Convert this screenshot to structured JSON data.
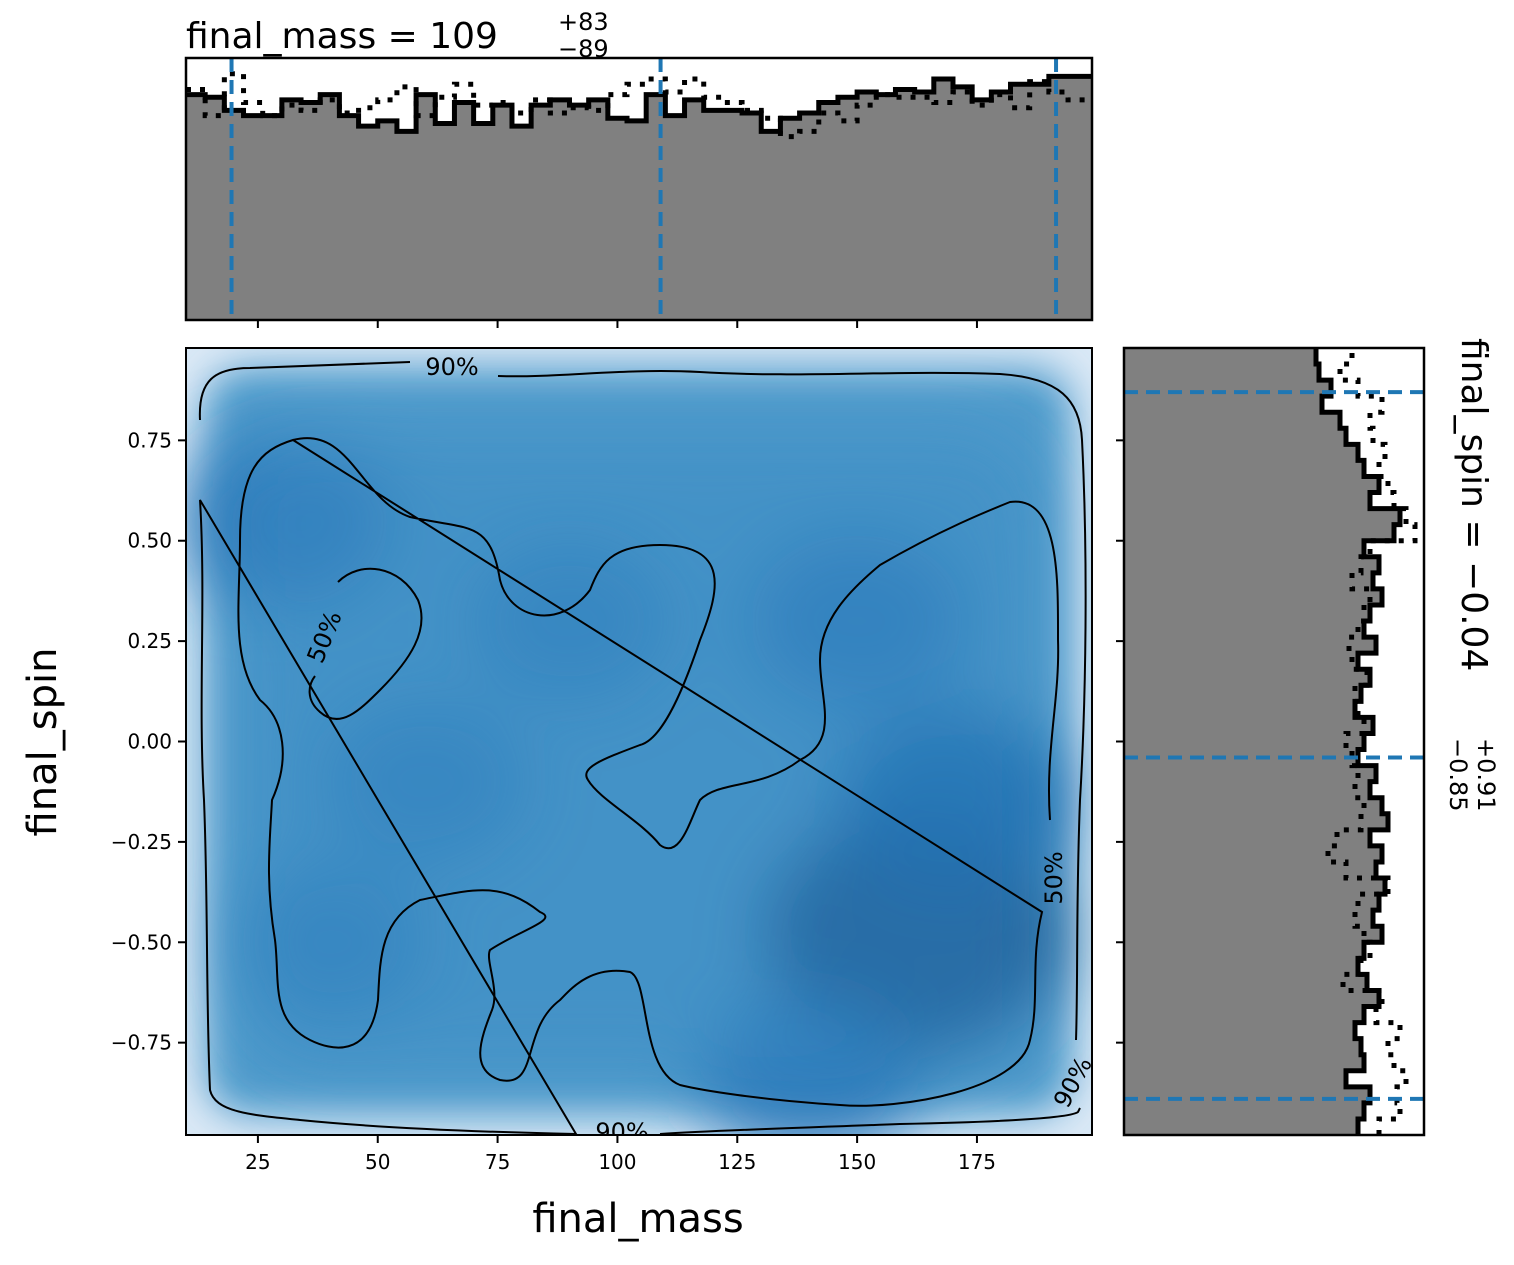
{
  "chart_data": [
    {
      "panel": "top-marginal",
      "type": "histogram",
      "title": "final_mass = 109",
      "title_upper": "+83",
      "title_lower": "−89",
      "xlim": [
        10,
        199
      ],
      "quantile_lines": [
        19.5,
        109,
        191.5
      ],
      "quantile_color": "#1f77b4",
      "fill_color": "#808080",
      "bin_edges": [
        10,
        14,
        18,
        22,
        26,
        30,
        34,
        38,
        42,
        46,
        50,
        54,
        58,
        62,
        66,
        70,
        74,
        78,
        82,
        86,
        90,
        94,
        98,
        102,
        106,
        110,
        114,
        118,
        122,
        126,
        130,
        134,
        138,
        142,
        146,
        150,
        154,
        158,
        162,
        166,
        170,
        174,
        178,
        182,
        186,
        190,
        194,
        199
      ],
      "solid_density": [
        0.86,
        0.85,
        0.8,
        0.78,
        0.78,
        0.84,
        0.83,
        0.86,
        0.78,
        0.74,
        0.76,
        0.72,
        0.86,
        0.75,
        0.83,
        0.75,
        0.82,
        0.74,
        0.82,
        0.84,
        0.82,
        0.84,
        0.77,
        0.76,
        0.86,
        0.78,
        0.84,
        0.8,
        0.8,
        0.79,
        0.72,
        0.77,
        0.79,
        0.83,
        0.85,
        0.87,
        0.86,
        0.88,
        0.87,
        0.92,
        0.89,
        0.84,
        0.87,
        0.9,
        0.9,
        0.93,
        0.93
      ],
      "dotted_density": [
        0.88,
        0.78,
        0.94,
        0.83,
        0.78,
        0.82,
        0.8,
        0.84,
        0.79,
        0.81,
        0.84,
        0.89,
        0.78,
        0.85,
        0.9,
        0.82,
        0.83,
        0.79,
        0.84,
        0.79,
        0.81,
        0.8,
        0.86,
        0.9,
        0.92,
        0.87,
        0.92,
        0.85,
        0.83,
        0.8,
        0.77,
        0.7,
        0.72,
        0.79,
        0.76,
        0.82,
        0.86,
        0.85,
        0.85,
        0.83,
        0.87,
        0.82,
        0.86,
        0.81,
        0.91,
        0.87,
        0.84
      ]
    },
    {
      "panel": "joint",
      "type": "heatmap",
      "xlabel": "final_mass",
      "ylabel": "final_spin",
      "xlim": [
        10,
        199
      ],
      "ylim": [
        -0.98,
        0.98
      ],
      "xticks": [
        "25",
        "50",
        "75",
        "100",
        "125",
        "150",
        "175"
      ],
      "xtick_values": [
        25,
        50,
        75,
        100,
        125,
        150,
        175
      ],
      "yticks": [
        "0.75",
        "0.50",
        "0.25",
        "0.00",
        "−0.25",
        "−0.50",
        "−0.75"
      ],
      "ytick_values": [
        0.75,
        0.5,
        0.25,
        0.0,
        -0.25,
        -0.5,
        -0.75
      ],
      "colormap": "Blues",
      "density_peaks": [
        {
          "x": 162,
          "y": -0.48,
          "w": 1.0
        },
        {
          "x": 170,
          "y": -0.15,
          "w": 0.55
        },
        {
          "x": 150,
          "y": 0.3,
          "w": 0.45
        },
        {
          "x": 30,
          "y": 0.55,
          "w": 0.45
        },
        {
          "x": 60,
          "y": -0.1,
          "w": 0.35
        },
        {
          "x": 90,
          "y": 0.3,
          "w": 0.35
        },
        {
          "x": 140,
          "y": -0.85,
          "w": 0.45
        },
        {
          "x": 40,
          "y": -0.5,
          "w": 0.3
        }
      ],
      "contour_labels": [
        "90%",
        "50%",
        "50%",
        "90%",
        "90%"
      ],
      "contour_levels": [
        "50%",
        "90%"
      ]
    },
    {
      "panel": "right-marginal",
      "type": "histogram",
      "orientation": "horizontal",
      "title": "final_spin = −0.04",
      "title_upper": "+0.91",
      "title_lower": "−0.85",
      "ylim": [
        -0.98,
        0.98
      ],
      "quantile_lines": [
        0.87,
        -0.04,
        -0.89
      ],
      "quantile_color": "#1f77b4",
      "fill_color": "#808080",
      "bin_edges": [
        -0.98,
        -0.94,
        -0.9,
        -0.86,
        -0.82,
        -0.78,
        -0.74,
        -0.7,
        -0.66,
        -0.62,
        -0.58,
        -0.54,
        -0.5,
        -0.46,
        -0.42,
        -0.38,
        -0.34,
        -0.3,
        -0.26,
        -0.22,
        -0.18,
        -0.14,
        -0.1,
        -0.06,
        -0.02,
        0.02,
        0.06,
        0.1,
        0.14,
        0.18,
        0.22,
        0.26,
        0.3,
        0.34,
        0.38,
        0.42,
        0.46,
        0.5,
        0.54,
        0.58,
        0.62,
        0.66,
        0.7,
        0.74,
        0.78,
        0.82,
        0.86,
        0.9,
        0.94,
        0.98
      ],
      "solid_density": [
        0.78,
        0.8,
        0.82,
        0.74,
        0.8,
        0.79,
        0.77,
        0.8,
        0.85,
        0.81,
        0.78,
        0.8,
        0.86,
        0.83,
        0.85,
        0.87,
        0.84,
        0.86,
        0.82,
        0.88,
        0.86,
        0.82,
        0.84,
        0.78,
        0.8,
        0.83,
        0.77,
        0.79,
        0.82,
        0.78,
        0.84,
        0.8,
        0.82,
        0.86,
        0.83,
        0.85,
        0.8,
        0.9,
        0.92,
        0.82,
        0.85,
        0.8,
        0.78,
        0.74,
        0.72,
        0.66,
        0.69,
        0.65,
        0.64
      ],
      "dotted_density": [
        0.85,
        0.92,
        0.91,
        0.94,
        0.9,
        0.88,
        0.92,
        0.84,
        0.86,
        0.73,
        0.79,
        0.82,
        0.8,
        0.77,
        0.78,
        0.88,
        0.74,
        0.68,
        0.71,
        0.79,
        0.8,
        0.77,
        0.78,
        0.76,
        0.74,
        0.8,
        0.78,
        0.77,
        0.81,
        0.76,
        0.75,
        0.78,
        0.8,
        0.82,
        0.76,
        0.79,
        0.82,
        0.97,
        0.94,
        0.9,
        0.88,
        0.85,
        0.87,
        0.83,
        0.82,
        0.86,
        0.78,
        0.72,
        0.76
      ]
    }
  ]
}
